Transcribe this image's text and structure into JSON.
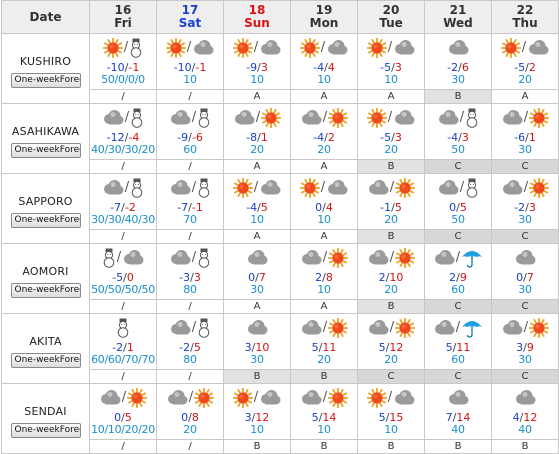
{
  "header": {
    "date_label": "Date",
    "days": [
      {
        "num": "16",
        "dow": "Fri",
        "kind": "norm"
      },
      {
        "num": "17",
        "dow": "Sat",
        "kind": "sat"
      },
      {
        "num": "18",
        "dow": "Sun",
        "kind": "sun"
      },
      {
        "num": "19",
        "dow": "Mon",
        "kind": "norm"
      },
      {
        "num": "20",
        "dow": "Tue",
        "kind": "norm"
      },
      {
        "num": "21",
        "dow": "Wed",
        "kind": "norm"
      },
      {
        "num": "22",
        "dow": "Thu",
        "kind": "norm"
      }
    ]
  },
  "button_label": "One-weekForecast",
  "cities": [
    {
      "name": "KUSHIRO",
      "days": [
        {
          "icons": [
            "sun",
            "snowman"
          ],
          "sep": "/",
          "tmin": "-10",
          "tmax": "-1",
          "pop": "50/0/0/0",
          "rel": "/"
        },
        {
          "icons": [
            "sun",
            "cloud"
          ],
          "sep": "/",
          "tmin": "-10",
          "tmax": "-1",
          "pop": "10",
          "rel": "/"
        },
        {
          "icons": [
            "sun",
            "cloud"
          ],
          "sep": "/",
          "tmin": "-9",
          "tmax": "3",
          "pop": "10",
          "rel": "A"
        },
        {
          "icons": [
            "sun",
            "cloud"
          ],
          "sep": "/",
          "tmin": "-4",
          "tmax": "4",
          "pop": "10",
          "rel": "A"
        },
        {
          "icons": [
            "sun",
            "cloud"
          ],
          "sep": "/",
          "tmin": "-5",
          "tmax": "3",
          "pop": "10",
          "rel": "A"
        },
        {
          "icons": [
            "cloud"
          ],
          "sep": "",
          "tmin": "-2",
          "tmax": "6",
          "pop": "30",
          "rel": "B"
        },
        {
          "icons": [
            "sun",
            "cloud"
          ],
          "sep": "/",
          "tmin": "-5",
          "tmax": "2",
          "pop": "20",
          "rel": "A"
        }
      ]
    },
    {
      "name": "ASAHIKAWA",
      "days": [
        {
          "icons": [
            "cloud",
            "snowman"
          ],
          "sep": "/",
          "tmin": "-12",
          "tmax": "-4",
          "pop": "40/30/30/20",
          "rel": "/"
        },
        {
          "icons": [
            "cloud",
            "snowman"
          ],
          "sep": "/",
          "tmin": "-9",
          "tmax": "-6",
          "pop": "60",
          "rel": "/"
        },
        {
          "icons": [
            "cloud",
            "sun"
          ],
          "sep": "/",
          "tmin": "-8",
          "tmax": "1",
          "pop": "20",
          "rel": "A"
        },
        {
          "icons": [
            "cloud",
            "sun"
          ],
          "sep": "/",
          "tmin": "-4",
          "tmax": "2",
          "pop": "20",
          "rel": "A"
        },
        {
          "icons": [
            "sun",
            "cloud"
          ],
          "sep": "/",
          "tmin": "-5",
          "tmax": "3",
          "pop": "20",
          "rel": "B"
        },
        {
          "icons": [
            "cloud",
            "snowman"
          ],
          "sep": "/",
          "tmin": "-4",
          "tmax": "3",
          "pop": "50",
          "rel": "C"
        },
        {
          "icons": [
            "cloud",
            "sun"
          ],
          "sep": "/",
          "tmin": "-6",
          "tmax": "1",
          "pop": "30",
          "rel": "C"
        }
      ]
    },
    {
      "name": "SAPPORO",
      "days": [
        {
          "icons": [
            "cloud",
            "snowman"
          ],
          "sep": "/",
          "tmin": "-7",
          "tmax": "-2",
          "pop": "30/30/40/30",
          "rel": "/"
        },
        {
          "icons": [
            "cloud",
            "snowman"
          ],
          "sep": "/",
          "tmin": "-7",
          "tmax": "-1",
          "pop": "70",
          "rel": "/"
        },
        {
          "icons": [
            "sun",
            "cloud"
          ],
          "sep": "/",
          "tmin": "-4",
          "tmax": "5",
          "pop": "10",
          "rel": "A"
        },
        {
          "icons": [
            "sun",
            "cloud"
          ],
          "sep": "/",
          "tmin": "0",
          "tmax": "4",
          "pop": "10",
          "rel": "A"
        },
        {
          "icons": [
            "cloud",
            "sun"
          ],
          "sep": "/",
          "tmin": "-1",
          "tmax": "5",
          "pop": "20",
          "rel": "B"
        },
        {
          "icons": [
            "cloud",
            "snowman"
          ],
          "sep": "/",
          "tmin": "0",
          "tmax": "5",
          "pop": "50",
          "rel": "C"
        },
        {
          "icons": [
            "cloud",
            "sun"
          ],
          "sep": "/",
          "tmin": "-2",
          "tmax": "3",
          "pop": "30",
          "rel": "C"
        }
      ]
    },
    {
      "name": "AOMORI",
      "days": [
        {
          "icons": [
            "snowman",
            "cloud"
          ],
          "sep": "/",
          "tmin": "-5",
          "tmax": "0",
          "pop": "50/50/50/50",
          "rel": "/"
        },
        {
          "icons": [
            "cloud",
            "snowman"
          ],
          "sep": "/",
          "tmin": "-3",
          "tmax": "3",
          "pop": "80",
          "rel": "/"
        },
        {
          "icons": [
            "cloud"
          ],
          "sep": "",
          "tmin": "0",
          "tmax": "7",
          "pop": "30",
          "rel": "A"
        },
        {
          "icons": [
            "cloud",
            "sun"
          ],
          "sep": "/",
          "tmin": "2",
          "tmax": "8",
          "pop": "10",
          "rel": "A"
        },
        {
          "icons": [
            "cloud",
            "sun"
          ],
          "sep": "/",
          "tmin": "2",
          "tmax": "10",
          "pop": "20",
          "rel": "B"
        },
        {
          "icons": [
            "cloud",
            "umbrella"
          ],
          "sep": "/",
          "tmin": "2",
          "tmax": "9",
          "pop": "60",
          "rel": "C"
        },
        {
          "icons": [
            "cloud"
          ],
          "sep": "",
          "tmin": "0",
          "tmax": "7",
          "pop": "30",
          "rel": "C"
        }
      ]
    },
    {
      "name": "AKITA",
      "days": [
        {
          "icons": [
            "snowman"
          ],
          "sep": "",
          "tmin": "-2",
          "tmax": "1",
          "pop": "60/60/70/70",
          "rel": "/"
        },
        {
          "icons": [
            "cloud",
            "snowman"
          ],
          "sep": "/",
          "tmin": "-2",
          "tmax": "5",
          "pop": "80",
          "rel": "/"
        },
        {
          "icons": [
            "cloud"
          ],
          "sep": "",
          "tmin": "3",
          "tmax": "10",
          "pop": "30",
          "rel": "B"
        },
        {
          "icons": [
            "cloud",
            "sun"
          ],
          "sep": "/",
          "tmin": "5",
          "tmax": "11",
          "pop": "20",
          "rel": "B"
        },
        {
          "icons": [
            "cloud",
            "sun"
          ],
          "sep": "/",
          "tmin": "5",
          "tmax": "12",
          "pop": "20",
          "rel": "C"
        },
        {
          "icons": [
            "cloud",
            "umbrella"
          ],
          "sep": "/",
          "tmin": "5",
          "tmax": "11",
          "pop": "60",
          "rel": "C"
        },
        {
          "icons": [
            "cloud",
            "sun"
          ],
          "sep": "/",
          "tmin": "3",
          "tmax": "9",
          "pop": "30",
          "rel": "C"
        }
      ]
    },
    {
      "name": "SENDAI",
      "days": [
        {
          "icons": [
            "cloud",
            "sun"
          ],
          "sep": "/",
          "tmin": "0",
          "tmax": "5",
          "pop": "10/10/20/20",
          "rel": "/"
        },
        {
          "icons": [
            "cloud",
            "sun"
          ],
          "sep": "/",
          "tmin": "0",
          "tmax": "8",
          "pop": "20",
          "rel": "/"
        },
        {
          "icons": [
            "sun",
            "cloud"
          ],
          "sep": "/",
          "tmin": "3",
          "tmax": "12",
          "pop": "10",
          "rel": "B"
        },
        {
          "icons": [
            "cloud",
            "sun"
          ],
          "sep": "/",
          "tmin": "5",
          "tmax": "14",
          "pop": "10",
          "rel": "B"
        },
        {
          "icons": [
            "sun",
            "cloud"
          ],
          "sep": "/",
          "tmin": "5",
          "tmax": "15",
          "pop": "10",
          "rel": "B"
        },
        {
          "icons": [
            "cloud"
          ],
          "sep": "",
          "tmin": "7",
          "tmax": "14",
          "pop": "40",
          "rel": "B"
        },
        {
          "icons": [
            "cloud"
          ],
          "sep": "",
          "tmin": "4",
          "tmax": "12",
          "pop": "40",
          "rel": "B"
        }
      ]
    }
  ],
  "colors": {
    "sun": "#f04a1a",
    "sun_ray": "#f0a020",
    "cloud": "#9a9a9a",
    "umbrella": "#1ea0e0",
    "min_temp": "#1a3fcc",
    "max_temp": "#d01414",
    "pop": "#1a8fcb"
  }
}
